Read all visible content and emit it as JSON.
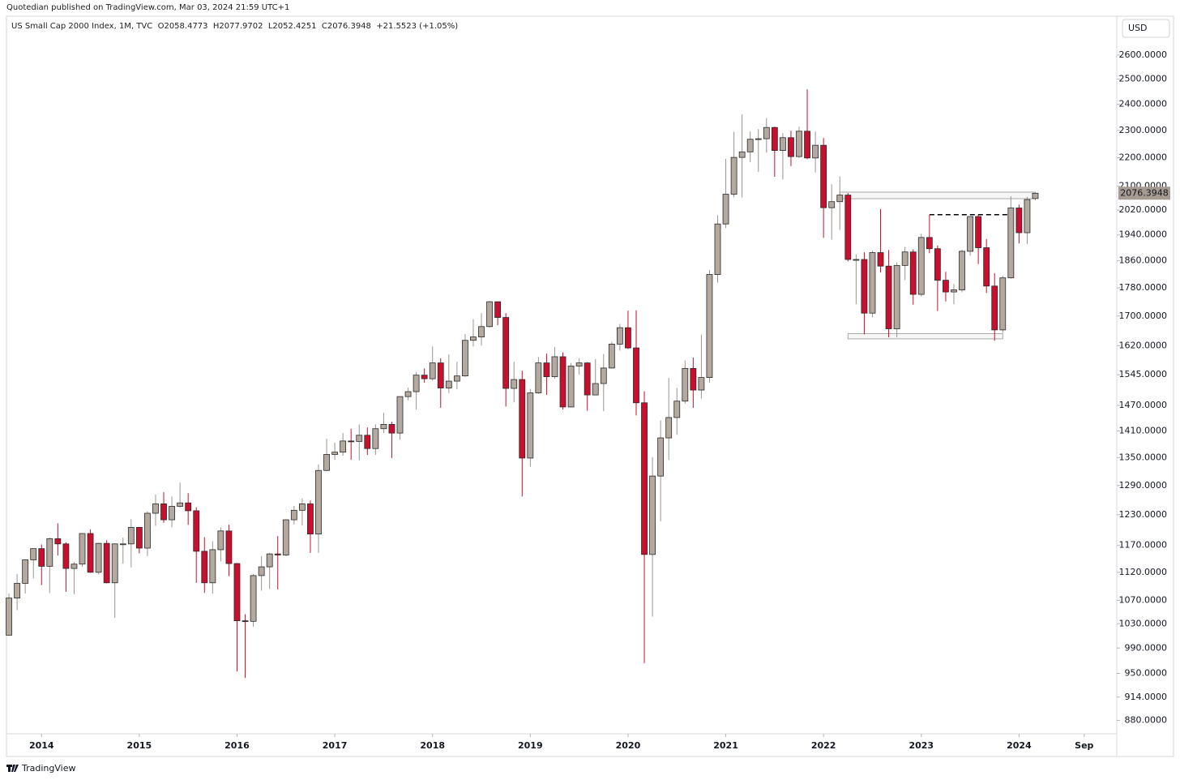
{
  "chart_data": {
    "type": "candlestick",
    "publisher": "Quotedian published on TradingView.com, Mar 03, 2024 21:59 UTC+1",
    "legend": "US Small Cap 2000 Index, 1M, TVC  O2058.4773  H2077.9702  L2052.4251  C2076.3948  +21.5523 (+1.05%)",
    "currency": "USD",
    "brand": "TradingView",
    "up_color": "#b3a99f",
    "down_color": "#c8102e",
    "log_scale": true,
    "x": [
      "2013-09",
      "2013-10",
      "2013-11",
      "2013-12",
      "2014-01",
      "2014-02",
      "2014-03",
      "2014-04",
      "2014-05",
      "2014-06",
      "2014-07",
      "2014-08",
      "2014-09",
      "2014-10",
      "2014-11",
      "2014-12",
      "2015-01",
      "2015-02",
      "2015-03",
      "2015-04",
      "2015-05",
      "2015-06",
      "2015-07",
      "2015-08",
      "2015-09",
      "2015-10",
      "2015-11",
      "2015-12",
      "2016-01",
      "2016-02",
      "2016-03",
      "2016-04",
      "2016-05",
      "2016-06",
      "2016-07",
      "2016-08",
      "2016-09",
      "2016-10",
      "2016-11",
      "2016-12",
      "2017-01",
      "2017-02",
      "2017-03",
      "2017-04",
      "2017-05",
      "2017-06",
      "2017-07",
      "2017-08",
      "2017-09",
      "2017-10",
      "2017-11",
      "2017-12",
      "2018-01",
      "2018-02",
      "2018-03",
      "2018-04",
      "2018-05",
      "2018-06",
      "2018-07",
      "2018-08",
      "2018-09",
      "2018-10",
      "2018-11",
      "2018-12",
      "2019-01",
      "2019-02",
      "2019-03",
      "2019-04",
      "2019-05",
      "2019-06",
      "2019-07",
      "2019-08",
      "2019-09",
      "2019-10",
      "2019-11",
      "2019-12",
      "2020-01",
      "2020-02",
      "2020-03",
      "2020-04",
      "2020-05",
      "2020-06",
      "2020-07",
      "2020-08",
      "2020-09",
      "2020-10",
      "2020-11",
      "2020-12",
      "2021-01",
      "2021-02",
      "2021-03",
      "2021-04",
      "2021-05",
      "2021-06",
      "2021-07",
      "2021-08",
      "2021-09",
      "2021-10",
      "2021-11",
      "2021-12",
      "2022-01",
      "2022-02",
      "2022-03",
      "2022-04",
      "2022-05",
      "2022-06",
      "2022-07",
      "2022-08",
      "2022-09",
      "2022-10",
      "2022-11",
      "2022-12",
      "2023-01",
      "2023-02",
      "2023-03",
      "2023-04",
      "2023-05",
      "2023-06",
      "2023-07",
      "2023-08",
      "2023-09",
      "2023-10",
      "2023-11",
      "2023-12",
      "2024-01",
      "2024-02",
      "2024-03"
    ],
    "open": [
      1011,
      1074,
      1100,
      1143,
      1164,
      1131,
      1183,
      1173,
      1127,
      1135,
      1193,
      1120,
      1174,
      1101,
      1173,
      1173,
      1205,
      1165,
      1233,
      1252,
      1220,
      1247,
      1254,
      1238,
      1159,
      1101,
      1162,
      1198,
      1136,
      1035,
      1034,
      1114,
      1130,
      1154,
      1152,
      1220,
      1239,
      1252,
      1192,
      1322,
      1357,
      1362,
      1387,
      1386,
      1400,
      1370,
      1415,
      1425,
      1405,
      1491,
      1503,
      1544,
      1535,
      1575,
      1512,
      1529,
      1542,
      1634,
      1643,
      1671,
      1740,
      1696,
      1511,
      1533,
      1349,
      1500,
      1575,
      1540,
      1591,
      1466,
      1567,
      1575,
      1495,
      1523,
      1562,
      1624,
      1668,
      1614,
      1476,
      1153,
      1310,
      1394,
      1441,
      1480,
      1561,
      1507,
      1538,
      1819,
      1975,
      2073,
      2201,
      2221,
      2267,
      2269,
      2311,
      2226,
      2273,
      2204,
      2297,
      2199,
      2245,
      2028,
      2048,
      2070,
      1864,
      1864,
      1708,
      1885,
      1844,
      1665,
      1846,
      1887,
      1761,
      1932,
      1897,
      1802,
      1768,
      1774,
      1889,
      1999,
      1900,
      1785,
      1662,
      1809,
      2027,
      1947,
      2058.4773
    ],
    "high": [
      1082,
      1117,
      1143,
      1164,
      1172,
      1185,
      1213,
      1176,
      1139,
      1193,
      1201,
      1175,
      1180,
      1174,
      1185,
      1221,
      1206,
      1237,
      1271,
      1276,
      1267,
      1296,
      1274,
      1245,
      1186,
      1178,
      1205,
      1210,
      1137,
      1046,
      1117,
      1150,
      1156,
      1188,
      1221,
      1248,
      1263,
      1259,
      1335,
      1392,
      1383,
      1405,
      1415,
      1425,
      1418,
      1425,
      1452,
      1431,
      1491,
      1513,
      1552,
      1561,
      1618,
      1587,
      1597,
      1578,
      1651,
      1691,
      1708,
      1742,
      1741,
      1708,
      1578,
      1555,
      1510,
      1590,
      1599,
      1616,
      1602,
      1575,
      1587,
      1577,
      1585,
      1598,
      1630,
      1678,
      1715,
      1716,
      1504,
      1351,
      1434,
      1537,
      1512,
      1581,
      1589,
      1649,
      1832,
      2003,
      2196,
      2295,
      2361,
      2296,
      2305,
      2346,
      2314,
      2290,
      2299,
      2314,
      2459,
      2296,
      2272,
      2107,
      2134,
      2077,
      1880,
      1886,
      1891,
      2023,
      1893,
      1855,
      1903,
      1895,
      1944,
      2004,
      1907,
      1827,
      1791,
      1894,
      2000,
      2004,
      1927,
      1823,
      1815,
      2066,
      2038,
      2064,
      2077.9702
    ],
    "low": [
      1010,
      1053,
      1082,
      1109,
      1097,
      1083,
      1151,
      1085,
      1081,
      1130,
      1119,
      1116,
      1100,
      1040,
      1136,
      1129,
      1155,
      1150,
      1208,
      1214,
      1205,
      1244,
      1210,
      1101,
      1083,
      1082,
      1140,
      1113,
      953,
      943,
      1025,
      1087,
      1090,
      1089,
      1150,
      1211,
      1209,
      1156,
      1156,
      1321,
      1345,
      1354,
      1345,
      1344,
      1356,
      1356,
      1405,
      1349,
      1390,
      1482,
      1460,
      1525,
      1530,
      1464,
      1500,
      1509,
      1540,
      1618,
      1620,
      1668,
      1675,
      1467,
      1477,
      1267,
      1330,
      1497,
      1495,
      1535,
      1460,
      1465,
      1545,
      1457,
      1495,
      1456,
      1561,
      1607,
      1611,
      1446,
      966,
      1042,
      1217,
      1345,
      1401,
      1474,
      1464,
      1486,
      1525,
      1795,
      1962,
      2063,
      2062,
      2184,
      2150,
      2218,
      2133,
      2123,
      2170,
      2199,
      2195,
      2148,
      1931,
      1925,
      1956,
      1858,
      1733,
      1650,
      1697,
      1825,
      1642,
      1642,
      1803,
      1732,
      1755,
      1883,
      1714,
      1741,
      1733,
      1767,
      1876,
      1850,
      1765,
      1633,
      1655,
      1807,
      1913,
      1912,
      2052.4251
    ],
    "close": [
      1074,
      1100,
      1143,
      1164,
      1131,
      1183,
      1173,
      1127,
      1135,
      1193,
      1120,
      1174,
      1101,
      1173,
      1173,
      1205,
      1165,
      1233,
      1252,
      1220,
      1247,
      1254,
      1238,
      1159,
      1101,
      1162,
      1198,
      1136,
      1035,
      1034,
      1114,
      1130,
      1154,
      1152,
      1220,
      1239,
      1252,
      1192,
      1322,
      1357,
      1362,
      1387,
      1386,
      1400,
      1370,
      1415,
      1425,
      1405,
      1491,
      1503,
      1544,
      1535,
      1575,
      1512,
      1529,
      1542,
      1634,
      1643,
      1671,
      1740,
      1696,
      1511,
      1533,
      1349,
      1500,
      1575,
      1540,
      1591,
      1466,
      1567,
      1575,
      1495,
      1523,
      1562,
      1624,
      1668,
      1614,
      1476,
      1153,
      1310,
      1394,
      1441,
      1480,
      1561,
      1507,
      1538,
      1819,
      1975,
      2073,
      2201,
      2221,
      2267,
      2269,
      2311,
      2226,
      2273,
      2204,
      2297,
      2199,
      2245,
      2028,
      2048,
      2070,
      1864,
      1864,
      1708,
      1885,
      1844,
      1665,
      1846,
      1887,
      1761,
      1932,
      1897,
      1802,
      1768,
      1774,
      1889,
      1999,
      1900,
      1785,
      1662,
      1809,
      2027,
      1947,
      2055,
      2076.3948
    ],
    "xlim": [
      "2013-08",
      "2025-01"
    ],
    "xticks": [
      {
        "value": "2014-01",
        "label": "2014"
      },
      {
        "value": "2015-01",
        "label": "2015"
      },
      {
        "value": "2016-01",
        "label": "2016"
      },
      {
        "value": "2017-01",
        "label": "2017"
      },
      {
        "value": "2018-01",
        "label": "2018"
      },
      {
        "value": "2019-01",
        "label": "2019"
      },
      {
        "value": "2020-01",
        "label": "2020"
      },
      {
        "value": "2021-01",
        "label": "2021"
      },
      {
        "value": "2022-01",
        "label": "2022"
      },
      {
        "value": "2023-01",
        "label": "2023"
      },
      {
        "value": "2024-01",
        "label": "2024"
      },
      {
        "value": "2024-09",
        "label": "Sep"
      }
    ],
    "ylim": [
      861,
      2770
    ],
    "yticks": [
      {
        "value": 2600,
        "label": "2600.0000"
      },
      {
        "value": 2500,
        "label": "2500.0000"
      },
      {
        "value": 2400,
        "label": "2400.0000"
      },
      {
        "value": 2300,
        "label": "2300.0000"
      },
      {
        "value": 2200,
        "label": "2200.0000"
      },
      {
        "value": 2100,
        "label": "2100.0000"
      },
      {
        "value": 2020,
        "label": "2020.0000"
      },
      {
        "value": 1940,
        "label": "1940.0000"
      },
      {
        "value": 1860,
        "label": "1860.0000"
      },
      {
        "value": 1780,
        "label": "1780.0000"
      },
      {
        "value": 1700,
        "label": "1700.0000"
      },
      {
        "value": 1620,
        "label": "1620.0000"
      },
      {
        "value": 1545,
        "label": "1545.0000"
      },
      {
        "value": 1470,
        "label": "1470.0000"
      },
      {
        "value": 1410,
        "label": "1410.0000"
      },
      {
        "value": 1350,
        "label": "1350.0000"
      },
      {
        "value": 1290,
        "label": "1290.0000"
      },
      {
        "value": 1230,
        "label": "1230.0000"
      },
      {
        "value": 1170,
        "label": "1170.0000"
      },
      {
        "value": 1120,
        "label": "1120.0000"
      },
      {
        "value": 1070,
        "label": "1070.0000"
      },
      {
        "value": 1030,
        "label": "1030.0000"
      },
      {
        "value": 990,
        "label": "990.0000"
      },
      {
        "value": 950,
        "label": "950.0000"
      },
      {
        "value": 914,
        "label": "914.0000"
      },
      {
        "value": 880,
        "label": "880.0000"
      }
    ],
    "drawings": [
      {
        "type": "rectangle",
        "from": "2022-03",
        "to": "2024-03",
        "top": 2080,
        "bottom": 2058
      },
      {
        "type": "rectangle",
        "from": "2022-04",
        "to": "2023-11",
        "top": 1652,
        "bottom": 1638
      },
      {
        "type": "dashed-line",
        "from": "2023-02",
        "to": "2023-12",
        "value": 2005
      }
    ]
  }
}
